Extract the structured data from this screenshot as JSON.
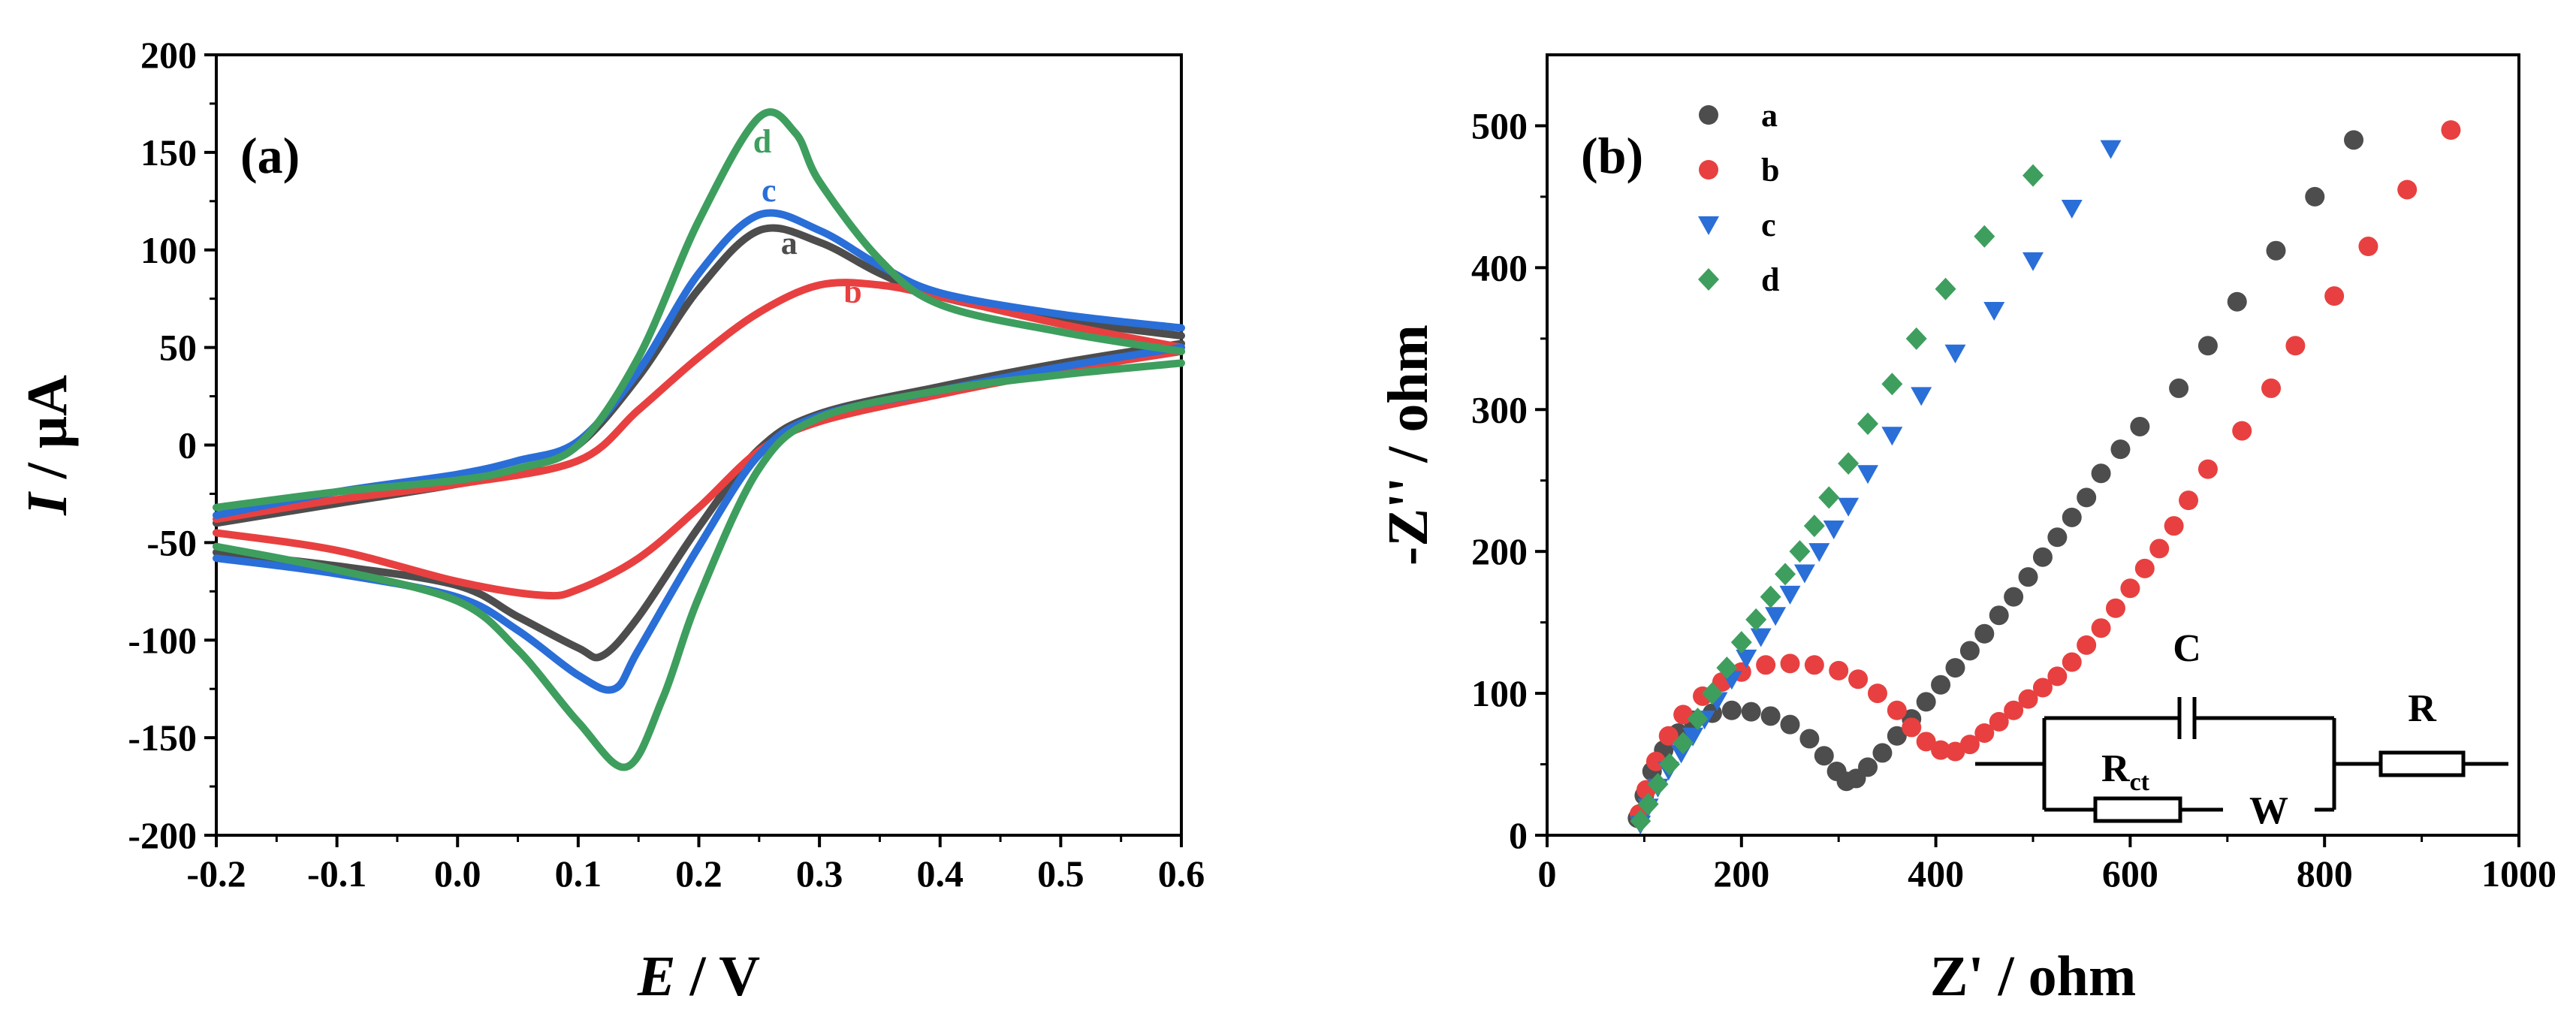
{
  "chart_data": [
    {
      "panel": "(a)",
      "type": "line",
      "subtype": "cyclic-voltammetry",
      "xlabel": "E / V",
      "ylabel": "I / μA",
      "xlim": [
        -0.2,
        0.6
      ],
      "ylim": [
        -200,
        200
      ],
      "xticks": [
        "-0.2",
        "-0.1",
        "0.0",
        "0.1",
        "0.2",
        "0.3",
        "0.4",
        "0.5",
        "0.6"
      ],
      "yticks": [
        "-200",
        "-150",
        "-100",
        "-50",
        "0",
        "50",
        "100",
        "150",
        "200"
      ],
      "series": [
        {
          "name": "a",
          "color": "#4d4d4d",
          "upper": [
            [
              -0.2,
              -40
            ],
            [
              -0.1,
              -30
            ],
            [
              0.0,
              -20
            ],
            [
              0.05,
              -13
            ],
            [
              0.1,
              0
            ],
            [
              0.15,
              35
            ],
            [
              0.2,
              80
            ],
            [
              0.25,
              110
            ],
            [
              0.3,
              104
            ],
            [
              0.35,
              88
            ],
            [
              0.4,
              76
            ],
            [
              0.5,
              64
            ],
            [
              0.6,
              56
            ]
          ],
          "lower": [
            [
              0.6,
              52
            ],
            [
              0.5,
              42
            ],
            [
              0.4,
              30
            ],
            [
              0.3,
              16
            ],
            [
              0.25,
              -2
            ],
            [
              0.2,
              -42
            ],
            [
              0.15,
              -88
            ],
            [
              0.12,
              -108
            ],
            [
              0.1,
              -104
            ],
            [
              0.05,
              -88
            ],
            [
              0.0,
              -72
            ],
            [
              -0.1,
              -62
            ],
            [
              -0.2,
              -55
            ]
          ]
        },
        {
          "name": "b",
          "color": "#e84040",
          "upper": [
            [
              -0.2,
              -38
            ],
            [
              -0.1,
              -28
            ],
            [
              0.0,
              -20
            ],
            [
              0.1,
              -8
            ],
            [
              0.15,
              18
            ],
            [
              0.2,
              45
            ],
            [
              0.25,
              68
            ],
            [
              0.3,
              82
            ],
            [
              0.35,
              82
            ],
            [
              0.4,
              76
            ],
            [
              0.5,
              62
            ],
            [
              0.6,
              50
            ]
          ],
          "lower": [
            [
              0.6,
              48
            ],
            [
              0.5,
              38
            ],
            [
              0.4,
              26
            ],
            [
              0.3,
              12
            ],
            [
              0.25,
              -3
            ],
            [
              0.2,
              -32
            ],
            [
              0.15,
              -58
            ],
            [
              0.1,
              -74
            ],
            [
              0.07,
              -77
            ],
            [
              0.0,
              -70
            ],
            [
              -0.1,
              -54
            ],
            [
              -0.2,
              -45
            ]
          ]
        },
        {
          "name": "c",
          "color": "#2a6ed8",
          "upper": [
            [
              -0.2,
              -36
            ],
            [
              -0.1,
              -24
            ],
            [
              0.0,
              -15
            ],
            [
              0.05,
              -8
            ],
            [
              0.1,
              2
            ],
            [
              0.15,
              38
            ],
            [
              0.2,
              88
            ],
            [
              0.25,
              118
            ],
            [
              0.3,
              110
            ],
            [
              0.35,
              92
            ],
            [
              0.4,
              78
            ],
            [
              0.5,
              67
            ],
            [
              0.6,
              60
            ]
          ],
          "lower": [
            [
              0.6,
              50
            ],
            [
              0.5,
              40
            ],
            [
              0.4,
              28
            ],
            [
              0.3,
              15
            ],
            [
              0.25,
              -5
            ],
            [
              0.2,
              -52
            ],
            [
              0.15,
              -105
            ],
            [
              0.13,
              -125
            ],
            [
              0.1,
              -118
            ],
            [
              0.05,
              -95
            ],
            [
              0.0,
              -78
            ],
            [
              -0.1,
              -66
            ],
            [
              -0.2,
              -58
            ]
          ]
        },
        {
          "name": "d",
          "color": "#3e9e5e",
          "upper": [
            [
              -0.2,
              -32
            ],
            [
              -0.1,
              -24
            ],
            [
              0.0,
              -18
            ],
            [
              0.05,
              -12
            ],
            [
              0.1,
              0
            ],
            [
              0.15,
              45
            ],
            [
              0.2,
              115
            ],
            [
              0.25,
              168
            ],
            [
              0.28,
              160
            ],
            [
              0.3,
              135
            ],
            [
              0.35,
              95
            ],
            [
              0.4,
              72
            ],
            [
              0.5,
              58
            ],
            [
              0.6,
              48
            ]
          ],
          "lower": [
            [
              0.6,
              42
            ],
            [
              0.5,
              36
            ],
            [
              0.4,
              28
            ],
            [
              0.3,
              14
            ],
            [
              0.25,
              -12
            ],
            [
              0.2,
              -78
            ],
            [
              0.17,
              -130
            ],
            [
              0.14,
              -165
            ],
            [
              0.1,
              -142
            ],
            [
              0.05,
              -105
            ],
            [
              0.0,
              -80
            ],
            [
              -0.1,
              -64
            ],
            [
              -0.2,
              -52
            ]
          ]
        }
      ],
      "curve_labels": [
        {
          "text": "d",
          "x": 0.245,
          "y": 150
        },
        {
          "text": "c",
          "x": 0.252,
          "y": 125
        },
        {
          "text": "a",
          "x": 0.268,
          "y": 98
        },
        {
          "text": "b",
          "x": 0.32,
          "y": 73
        }
      ]
    },
    {
      "panel": "(b)",
      "type": "scatter",
      "subtype": "nyquist",
      "xlabel": "Z' / ohm",
      "ylabel": "-Z'' / ohm",
      "xlim": [
        0,
        1000
      ],
      "ylim": [
        0,
        550
      ],
      "xticks": [
        "0",
        "200",
        "400",
        "600",
        "800",
        "1000"
      ],
      "yticks": [
        "0",
        "100",
        "200",
        "300",
        "400",
        "500"
      ],
      "legend": {
        "position": "top-left",
        "entries": [
          "a",
          "b",
          "c",
          "d"
        ]
      },
      "series": [
        {
          "name": "a",
          "color": "#4d4d4d",
          "marker": "circle",
          "points": [
            [
              93,
              12
            ],
            [
              100,
              28
            ],
            [
              108,
              45
            ],
            [
              120,
              60
            ],
            [
              135,
              72
            ],
            [
              150,
              81
            ],
            [
              170,
              86
            ],
            [
              190,
              88
            ],
            [
              210,
              87
            ],
            [
              230,
              84
            ],
            [
              250,
              78
            ],
            [
              270,
              68
            ],
            [
              285,
              56
            ],
            [
              298,
              45
            ],
            [
              308,
              38
            ],
            [
              318,
              40
            ],
            [
              330,
              48
            ],
            [
              345,
              58
            ],
            [
              360,
              70
            ],
            [
              375,
              82
            ],
            [
              390,
              94
            ],
            [
              405,
              106
            ],
            [
              420,
              118
            ],
            [
              435,
              130
            ],
            [
              450,
              142
            ],
            [
              465,
              155
            ],
            [
              480,
              168
            ],
            [
              495,
              182
            ],
            [
              510,
              196
            ],
            [
              525,
              210
            ],
            [
              540,
              224
            ],
            [
              555,
              238
            ],
            [
              570,
              255
            ],
            [
              590,
              272
            ],
            [
              610,
              288
            ],
            [
              650,
              315
            ],
            [
              680,
              345
            ],
            [
              710,
              376
            ],
            [
              750,
              412
            ],
            [
              790,
              450
            ],
            [
              830,
              490
            ]
          ]
        },
        {
          "name": "b",
          "color": "#e84040",
          "marker": "circle",
          "points": [
            [
              95,
              15
            ],
            [
              102,
              32
            ],
            [
              112,
              52
            ],
            [
              125,
              70
            ],
            [
              140,
              85
            ],
            [
              160,
              98
            ],
            [
              180,
              108
            ],
            [
              200,
              115
            ],
            [
              225,
              120
            ],
            [
              250,
              121
            ],
            [
              275,
              120
            ],
            [
              300,
              116
            ],
            [
              320,
              110
            ],
            [
              340,
              100
            ],
            [
              360,
              88
            ],
            [
              375,
              76
            ],
            [
              390,
              66
            ],
            [
              405,
              60
            ],
            [
              420,
              59
            ],
            [
              435,
              64
            ],
            [
              450,
              72
            ],
            [
              465,
              80
            ],
            [
              480,
              88
            ],
            [
              495,
              96
            ],
            [
              510,
              104
            ],
            [
              525,
              112
            ],
            [
              540,
              122
            ],
            [
              555,
              134
            ],
            [
              570,
              146
            ],
            [
              585,
              160
            ],
            [
              600,
              174
            ],
            [
              615,
              188
            ],
            [
              630,
              202
            ],
            [
              645,
              218
            ],
            [
              660,
              236
            ],
            [
              680,
              258
            ],
            [
              715,
              285
            ],
            [
              745,
              315
            ],
            [
              770,
              345
            ],
            [
              810,
              380
            ],
            [
              845,
              415
            ],
            [
              885,
              455
            ],
            [
              930,
              497
            ]
          ]
        },
        {
          "name": "c",
          "color": "#2a6ed8",
          "marker": "triangle-down",
          "points": [
            [
              96,
              8
            ],
            [
              104,
              20
            ],
            [
              114,
              34
            ],
            [
              125,
              46
            ],
            [
              138,
              58
            ],
            [
              150,
              70
            ],
            [
              162,
              82
            ],
            [
              175,
              95
            ],
            [
              190,
              110
            ],
            [
              205,
              125
            ],
            [
              220,
              140
            ],
            [
              235,
              155
            ],
            [
              250,
              170
            ],
            [
              265,
              185
            ],
            [
              280,
              200
            ],
            [
              295,
              216
            ],
            [
              310,
              232
            ],
            [
              330,
              255
            ],
            [
              355,
              282
            ],
            [
              385,
              310
            ],
            [
              420,
              340
            ],
            [
              460,
              370
            ],
            [
              500,
              405
            ],
            [
              540,
              442
            ],
            [
              580,
              484
            ]
          ]
        },
        {
          "name": "d",
          "color": "#3e9e5e",
          "marker": "diamond",
          "points": [
            [
              96,
              10
            ],
            [
              104,
              22
            ],
            [
              114,
              36
            ],
            [
              126,
              50
            ],
            [
              140,
              65
            ],
            [
              155,
              82
            ],
            [
              170,
              100
            ],
            [
              185,
              118
            ],
            [
              200,
              136
            ],
            [
              215,
              152
            ],
            [
              230,
              168
            ],
            [
              245,
              184
            ],
            [
              260,
              200
            ],
            [
              275,
              218
            ],
            [
              290,
              238
            ],
            [
              310,
              262
            ],
            [
              330,
              290
            ],
            [
              355,
              318
            ],
            [
              380,
              350
            ],
            [
              410,
              385
            ],
            [
              450,
              422
            ],
            [
              500,
              465
            ]
          ]
        }
      ],
      "inset": {
        "type": "equivalent-circuit",
        "labels": {
          "capacitor": "C",
          "charge_transfer": "R",
          "charge_transfer_sub": "ct",
          "warburg": "W",
          "solution": "R"
        }
      }
    }
  ]
}
